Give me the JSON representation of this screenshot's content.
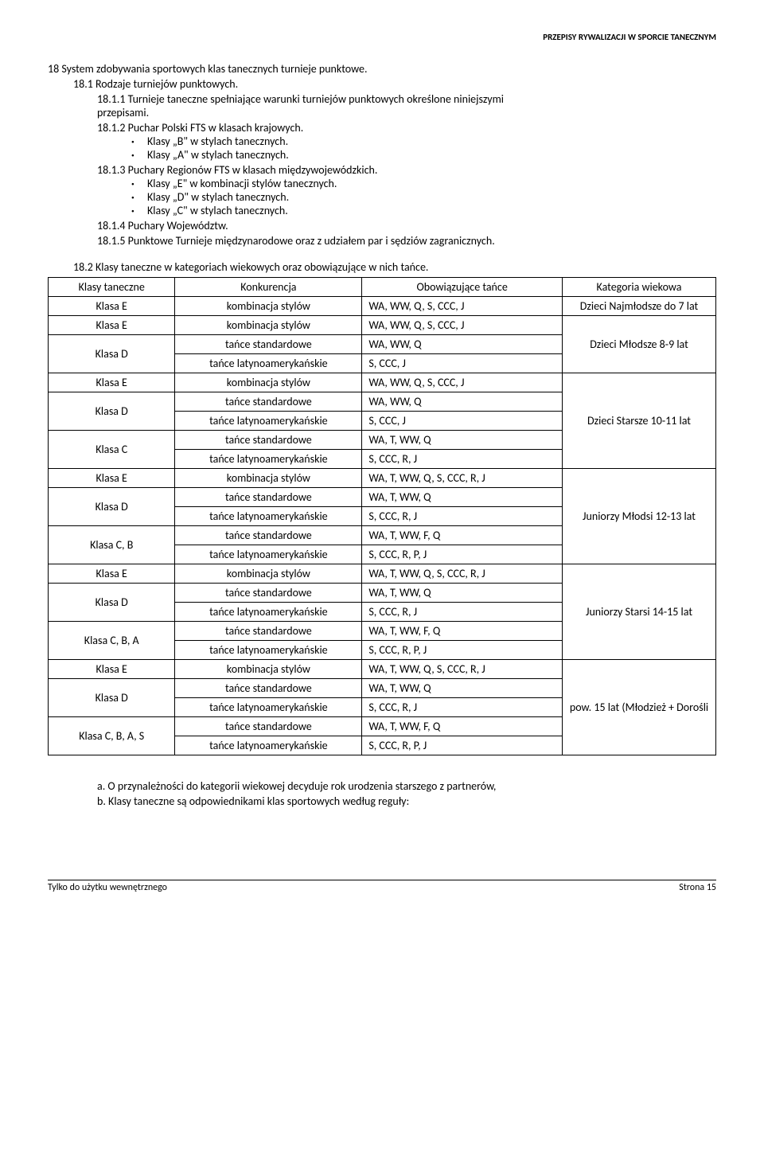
{
  "header": "PRZEPISY RYWALIZACJI W SPORCIE TANECZNYM",
  "sec18": "18  System zdobywania sportowych klas tanecznych turnieje punktowe.",
  "sec181": "18.1  Rodzaje turniejów punktowych.",
  "sec1811a": "18.1.1  Turnieje taneczne spełniające warunki turniejów punktowych określone niniejszymi",
  "sec1811b": "przepisami.",
  "sec1812": "18.1.2  Puchar Polski FTS w klasach krajowych.",
  "b1": "Klasy „B\" w stylach tanecznych.",
  "b2": "Klasy „A\" w stylach tanecznych.",
  "sec1813": "18.1.3  Puchary Regionów FTS w klasach międzywojewódzkich.",
  "b3": "Klasy „E\" w kombinacji stylów tanecznych.",
  "b4": "Klasy „D\" w stylach tanecznych.",
  "b5": "Klasy „C\" w stylach tanecznych.",
  "sec1814": "18.1.4  Puchary Województw.",
  "sec1815": "18.1.5  Punktowe Turnieje międzynarodowe oraz z udziałem par i sędziów zagranicznych.",
  "sec182": "18.2  Klasy taneczne w kategoriach wiekowych oraz obowiązujące w nich tańce.",
  "th1": "Klasy taneczne",
  "th2": "Konkurencja",
  "th3": "Obowiązujące tańce",
  "th4": "Kategoria wiekowa",
  "rows": [
    {
      "c1": "Klasa  E",
      "c2": "kombinacja stylów",
      "c3": "WA, WW, Q, S, CCC, J",
      "c4": "Dzieci Najmłodsze do 7 lat",
      "rs": 1,
      "c1a": "center",
      "c2a": "center"
    },
    {
      "c1": "Klasa  E",
      "c2": "kombinacja stylów",
      "c3": "WA, WW, Q, S, CCC, J",
      "c4": "Dzieci Młodsze 8-9 lat",
      "rs": 3,
      "c1a": "center",
      "c2a": "center"
    },
    {
      "c1": "Klasa  D",
      "c2": "tańce standardowe",
      "c3": "WA, WW, Q",
      "rs1": 2,
      "c1a": "center",
      "c2a": "center"
    },
    {
      "c2": "tańce latynoamerykańskie",
      "c3": "S, CCC,  J",
      "c2a": "center"
    },
    {
      "c1": "Klasa E",
      "c2": "kombinacja stylów",
      "c3": "WA, WW, Q, S, CCC, J",
      "c4": "Dzieci Starsze 10-11 lat",
      "rs": 5,
      "c1a": "center",
      "c2a": "center"
    },
    {
      "c1": "Klasa D",
      "c2": "tańce standardowe",
      "c3": "WA, WW, Q",
      "rs1": 2,
      "c1a": "center",
      "c2a": "center"
    },
    {
      "c2": "tańce latynoamerykańskie",
      "c3": "S, CCC,  J",
      "c2a": "center"
    },
    {
      "c1": "Klasa C",
      "c2": "tańce standardowe",
      "c3": "WA, T, WW, Q",
      "rs1": 2,
      "c1a": "center",
      "c2a": "center"
    },
    {
      "c2": "tańce latynoamerykańskie",
      "c3": "S, CCC, R, J",
      "c2a": "center"
    },
    {
      "c1": "Klasa E",
      "c2": "kombinacja stylów",
      "c3": "WA, T, WW, Q, S, CCC, R, J",
      "c4": "Juniorzy Młodsi 12-13 lat",
      "rs": 5,
      "c1a": "center",
      "c2a": "center"
    },
    {
      "c1": "Klasa D",
      "c2": "tańce standardowe",
      "c3": "WA, T, WW, Q",
      "rs1": 2,
      "c1a": "center",
      "c2a": "center"
    },
    {
      "c2": "tańce latynoamerykańskie",
      "c3": "S, CCC, R, J",
      "c2a": "center"
    },
    {
      "c1": "Klasa C, B",
      "c2": "tańce standardowe",
      "c3": "WA, T, WW, F, Q",
      "rs1": 2,
      "c1a": "center",
      "c2a": "center"
    },
    {
      "c2": "tańce latynoamerykańskie",
      "c3": "S, CCC, R, P, J",
      "c2a": "center"
    },
    {
      "c1": "Klasa E",
      "c2": "kombinacja stylów",
      "c3": "WA, T, WW, Q, S, CCC, R, J",
      "c4": "Juniorzy Starsi 14-15 lat",
      "rs": 5,
      "c1a": "center",
      "c2a": "center"
    },
    {
      "c1": "Klasa D",
      "c2": "tańce standardowe",
      "c3": "WA, T, WW, Q",
      "rs1": 2,
      "c1a": "center",
      "c2a": "center"
    },
    {
      "c2": "tańce latynoamerykańskie",
      "c3": "S, CCC, R, J",
      "c2a": "center"
    },
    {
      "c1": "Klasa C, B, A",
      "c2": "tańce standardowe",
      "c3": "WA, T, WW, F, Q",
      "rs1": 2,
      "c1a": "center",
      "c2a": "center"
    },
    {
      "c2": "tańce latynoamerykańskie",
      "c3": "S, CCC, R, P, J",
      "c2a": "center"
    },
    {
      "c1": "Klasa E",
      "c2": "kombinacja stylów",
      "c3": "WA, T, WW, Q, S, CCC, R, J",
      "c4": "pow. 15 lat (Młodzież + Dorośli",
      "rs": 5,
      "c1a": "center",
      "c2a": "center"
    },
    {
      "c1": "Klasa D",
      "c2": "tańce standardowe",
      "c3": "WA, T, WW, Q",
      "rs1": 2,
      "c1a": "center",
      "c2a": "center"
    },
    {
      "c2": "tańce latynoamerykańskie",
      "c3": "S, CCC, R, J",
      "c2a": "center"
    },
    {
      "c1": "Klasa C, B, A, S",
      "c2": "tańce standardowe",
      "c3": "WA, T, WW, F, Q",
      "rs1": 2,
      "c1a": "center",
      "c2a": "center"
    },
    {
      "c2": "tańce latynoamerykańskie",
      "c3": "S, CCC, R, P, J",
      "c2a": "center"
    }
  ],
  "note_a": "a. O przynależności do kategorii wiekowej decyduje rok urodzenia starszego z partnerów,",
  "note_b": "b. Klasy taneczne są odpowiednikami klas sportowych według reguły:",
  "footer_left": "Tylko do użytku wewnętrznego",
  "footer_right": "Strona 15"
}
